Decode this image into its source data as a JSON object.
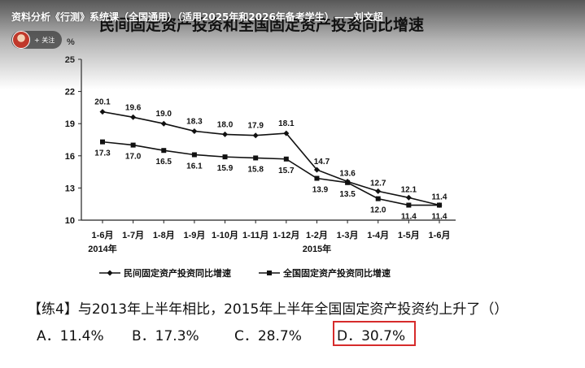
{
  "video": {
    "title": "资料分析《行测》系统课（全国通用）（适用2025年和2026年备考学生）——刘文超",
    "follow_label": "+ 关注"
  },
  "chart_data": {
    "type": "line",
    "title": "民间固定资产投资和全国固定资产投资同比增速",
    "ylabel": "%",
    "ylim": [
      10,
      25
    ],
    "yticks": [
      10,
      13,
      16,
      19,
      22,
      25
    ],
    "categories": [
      "1-6月",
      "1-7月",
      "1-8月",
      "1-9月",
      "1-10月",
      "1-11月",
      "1-12月",
      "1-2月",
      "1-3月",
      "1-4月",
      "1-5月",
      "1-6月"
    ],
    "year_labels": [
      {
        "index": 0,
        "label": "2014年"
      },
      {
        "index": 7,
        "label": "2015年"
      }
    ],
    "grid": false,
    "legend_position": "bottom",
    "series": [
      {
        "name": "民间固定资产投资同比增速",
        "marker": "diamond",
        "values": [
          20.1,
          19.6,
          19.0,
          18.3,
          18.0,
          17.9,
          18.1,
          14.7,
          13.6,
          12.7,
          12.1,
          11.4
        ]
      },
      {
        "name": "全国固定资产投资同比增速",
        "marker": "square",
        "values": [
          17.3,
          17.0,
          16.5,
          16.1,
          15.9,
          15.8,
          15.7,
          13.9,
          13.5,
          12.0,
          11.4,
          11.4
        ]
      }
    ]
  },
  "question": {
    "text": "【练4】与2013年上半年相比，2015年上半年全国固定资产投资约上升了（）",
    "options": [
      {
        "label": "A．11.4%"
      },
      {
        "label": "B．17.3%"
      },
      {
        "label": "C．28.7%"
      },
      {
        "label": "D．30.7%"
      }
    ],
    "highlight_color": "#d62b2b"
  }
}
